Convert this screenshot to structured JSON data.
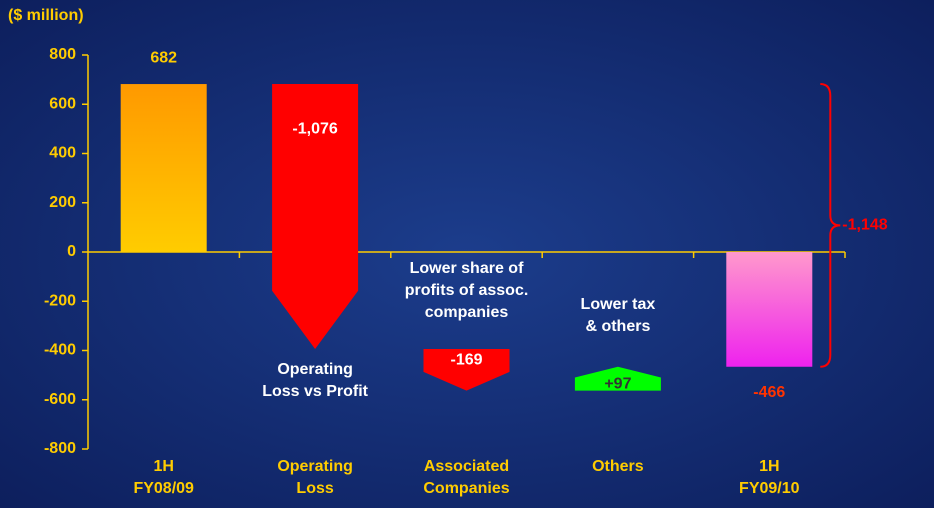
{
  "chart_data": {
    "type": "waterfall",
    "y_label": "($ million)",
    "categories": [
      [
        "1H",
        "FY08/09"
      ],
      [
        "Operating",
        "Loss"
      ],
      [
        "Associated",
        "Companies"
      ],
      [
        "Others"
      ],
      [
        "1H",
        "FY09/10"
      ]
    ],
    "values": [
      682,
      -1076,
      -169,
      97,
      -466
    ],
    "value_labels": [
      "682",
      "-1,076",
      "-169",
      "+97",
      "-466"
    ],
    "kinds": [
      "total",
      "change",
      "change",
      "change",
      "total"
    ],
    "colors": [
      "#ffa500",
      "#ff0000",
      "#ff0000",
      "#00ff00",
      "#ff44dd"
    ],
    "descriptions": [
      null,
      [
        "Operating",
        "Loss vs Profit"
      ],
      [
        "Lower share of",
        "profits of assoc.",
        "companies"
      ],
      [
        "Lower tax",
        "& others"
      ],
      null
    ],
    "total_change": {
      "value": -1148,
      "label": "-1,148"
    },
    "ylim": [
      -800,
      800
    ],
    "yticks": [
      -800,
      -600,
      -400,
      -200,
      0,
      200,
      400,
      600,
      800
    ]
  }
}
